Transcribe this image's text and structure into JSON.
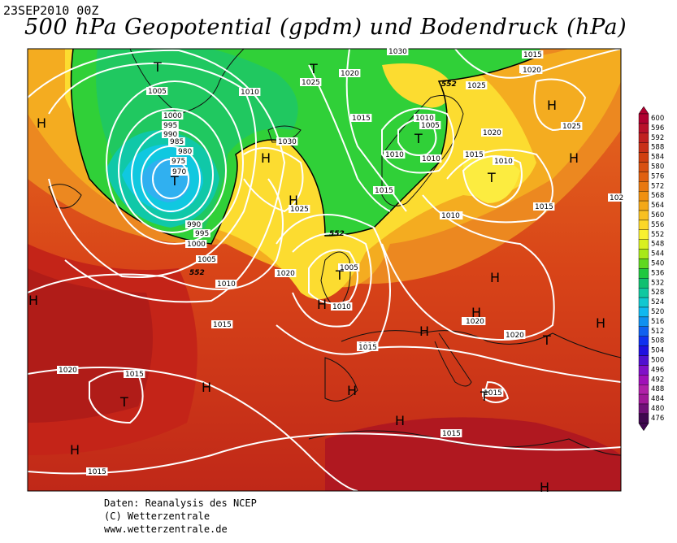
{
  "header": {
    "date": "23SEP2010 00Z",
    "title": "500 hPa Geopotential (gpdm) und Bodendruck (hPa)"
  },
  "credits": [
    "Daten: Reanalysis des NCEP",
    "(C) Wetterzentrale",
    "www.wetterzentrale.de"
  ],
  "colorbar": {
    "labels": [
      "600",
      "596",
      "592",
      "588",
      "584",
      "580",
      "576",
      "572",
      "568",
      "564",
      "560",
      "556",
      "552",
      "548",
      "544",
      "540",
      "536",
      "532",
      "528",
      "524",
      "520",
      "516",
      "512",
      "508",
      "504",
      "500",
      "496",
      "492",
      "488",
      "484",
      "480",
      "476"
    ],
    "colors": [
      "#b00030",
      "#b8102a",
      "#c02020",
      "#c83018",
      "#d04010",
      "#d85010",
      "#e06010",
      "#e87810",
      "#f09010",
      "#f4a818",
      "#f8c020",
      "#fcd828",
      "#f8f030",
      "#d8f020",
      "#a8e818",
      "#60d820",
      "#20c840",
      "#10c070",
      "#10c8a0",
      "#10c8d0",
      "#10b8f0",
      "#1090f0",
      "#1060f0",
      "#1030f0",
      "#2010e0",
      "#5010d0",
      "#8010c8",
      "#a010b8",
      "#b020a8",
      "#a01898",
      "#701078",
      "#400850"
    ]
  },
  "map": {
    "pressure_labels": [
      "1030",
      "1015",
      "1020",
      "1025",
      "1005",
      "1000",
      "995",
      "990",
      "985",
      "980",
      "975",
      "970",
      "1010",
      "1030",
      "1025",
      "1020",
      "1015",
      "1010",
      "1005",
      "1010",
      "1010",
      "1015",
      "1025",
      "1020",
      "1025",
      "1015",
      "1010",
      "1020",
      "1015",
      "1010",
      "1005",
      "1020",
      "1015",
      "1020",
      "1020",
      "1015",
      "1015",
      "1015",
      "1020",
      "1015",
      "1010",
      "1000",
      "995",
      "990",
      "1005",
      "1010",
      "1020",
      "1015",
      "1015",
      "1015",
      "1020",
      "1020",
      "102"
    ],
    "geopotential_labels": [
      "552",
      "552",
      "552"
    ],
    "highs": [
      "H",
      "H",
      "H",
      "H",
      "H",
      "H",
      "H",
      "H",
      "H",
      "H",
      "H",
      "H",
      "H",
      "H",
      "H",
      "H"
    ],
    "lows": [
      "T",
      "T",
      "T",
      "T",
      "T",
      "T",
      "T",
      "T",
      "T"
    ]
  }
}
